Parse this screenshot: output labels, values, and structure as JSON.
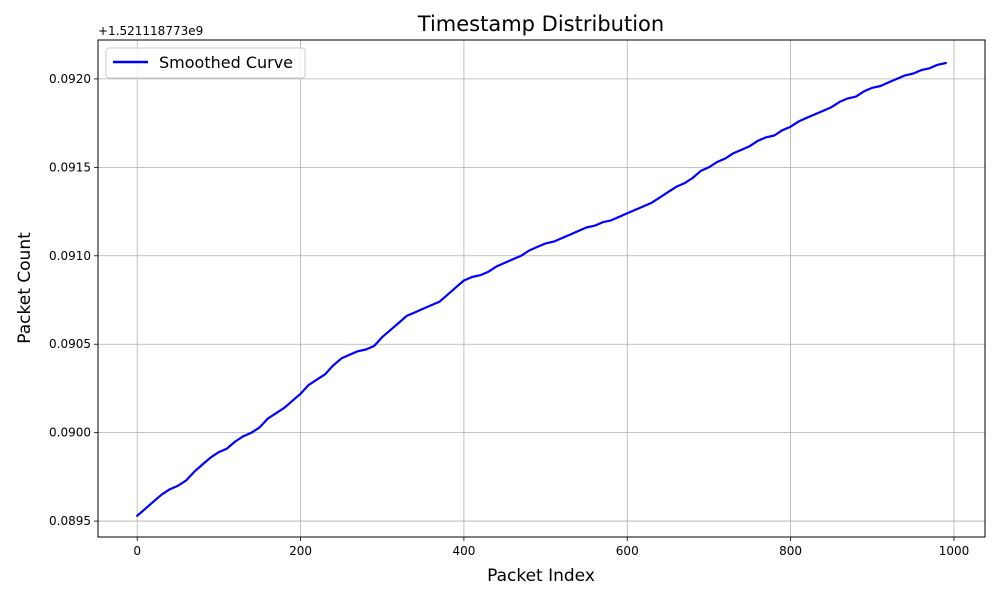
{
  "chart_data": {
    "type": "line",
    "title": "Timestamp Distribution",
    "xlabel": "Packet Index",
    "ylabel": "Packet Count",
    "y_offset_label": "+1.521118773e9",
    "xlim": [
      -48,
      1038
    ],
    "ylim": [
      0.08941,
      0.09222
    ],
    "x_ticks": [
      0,
      200,
      400,
      600,
      800,
      1000
    ],
    "x_tick_labels": [
      "0",
      "200",
      "400",
      "600",
      "800",
      "1000"
    ],
    "y_ticks": [
      0.0895,
      0.09,
      0.0905,
      0.091,
      0.0915,
      0.092
    ],
    "y_tick_labels": [
      "0.0895",
      "0.0900",
      "0.0905",
      "0.0910",
      "0.0915",
      "0.0920"
    ],
    "grid": true,
    "legend_position": "top-left",
    "series": [
      {
        "name": "Smoothed Curve",
        "color": "#0000ff",
        "x": [
          0,
          10,
          20,
          30,
          40,
          50,
          60,
          70,
          80,
          90,
          100,
          110,
          120,
          130,
          140,
          150,
          160,
          170,
          180,
          190,
          200,
          210,
          220,
          230,
          240,
          250,
          260,
          270,
          280,
          290,
          300,
          310,
          320,
          330,
          340,
          350,
          360,
          370,
          380,
          390,
          400,
          410,
          420,
          430,
          440,
          450,
          460,
          470,
          480,
          490,
          500,
          510,
          520,
          530,
          540,
          550,
          560,
          570,
          580,
          590,
          600,
          610,
          620,
          630,
          640,
          650,
          660,
          670,
          680,
          690,
          700,
          710,
          720,
          730,
          740,
          750,
          760,
          770,
          780,
          790,
          800,
          810,
          820,
          830,
          840,
          850,
          860,
          870,
          880,
          890,
          900,
          910,
          920,
          930,
          940,
          950,
          960,
          970,
          980,
          990
        ],
        "y": [
          0.08953,
          0.08957,
          0.08961,
          0.08965,
          0.08968,
          0.0897,
          0.08973,
          0.08978,
          0.08982,
          0.08986,
          0.08989,
          0.08991,
          0.08995,
          0.08998,
          0.09,
          0.09003,
          0.09008,
          0.09011,
          0.09014,
          0.09018,
          0.09022,
          0.09027,
          0.0903,
          0.09033,
          0.09038,
          0.09042,
          0.09044,
          0.09046,
          0.09047,
          0.09049,
          0.09054,
          0.09058,
          0.09062,
          0.09066,
          0.09068,
          0.0907,
          0.09072,
          0.09074,
          0.09078,
          0.09082,
          0.09086,
          0.09088,
          0.09089,
          0.09091,
          0.09094,
          0.09096,
          0.09098,
          0.091,
          0.09103,
          0.09105,
          0.09107,
          0.09108,
          0.0911,
          0.09112,
          0.09114,
          0.09116,
          0.09117,
          0.09119,
          0.0912,
          0.09122,
          0.09124,
          0.09126,
          0.09128,
          0.0913,
          0.09133,
          0.09136,
          0.09139,
          0.09141,
          0.09144,
          0.09148,
          0.0915,
          0.09153,
          0.09155,
          0.09158,
          0.0916,
          0.09162,
          0.09165,
          0.09167,
          0.09168,
          0.09171,
          0.09173,
          0.09176,
          0.09178,
          0.0918,
          0.09182,
          0.09184,
          0.09187,
          0.09189,
          0.0919,
          0.09193,
          0.09195,
          0.09196,
          0.09198,
          0.092,
          0.09202,
          0.09203,
          0.09205,
          0.09206,
          0.09208,
          0.09209
        ]
      }
    ]
  }
}
